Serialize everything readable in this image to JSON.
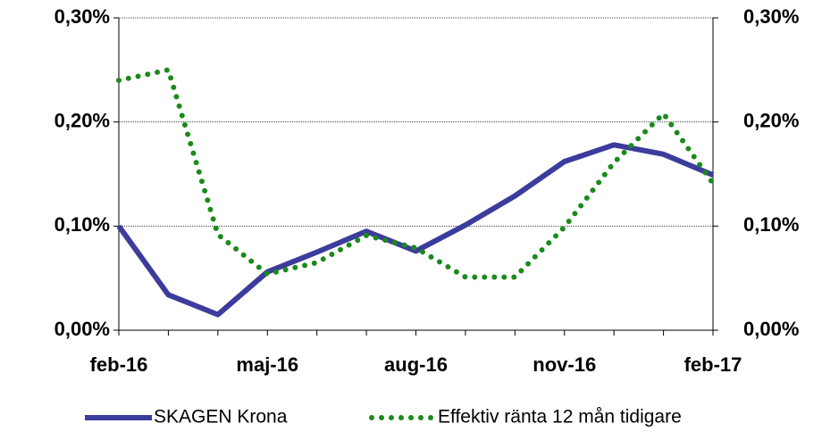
{
  "chart_data": {
    "type": "line",
    "categories": [
      "feb-16",
      null,
      null,
      "maj-16",
      null,
      null,
      "aug-16",
      null,
      null,
      "nov-16",
      null,
      null,
      "feb-17"
    ],
    "series": [
      {
        "name": "SKAGEN Krona",
        "color": "#3c3c9c",
        "style": "solid",
        "values": [
          0.1,
          0.034,
          0.015,
          0.056,
          0.075,
          0.095,
          0.076,
          0.101,
          0.129,
          0.162,
          0.178,
          0.169,
          0.149
        ]
      },
      {
        "name": "Effektiv ränta 12 mån tidigare",
        "color": "#1a8a1a",
        "style": "dotted",
        "axis": "y2",
        "values": [
          0.24,
          0.25,
          0.092,
          0.054,
          0.065,
          0.091,
          0.079,
          0.051,
          0.051,
          0.099,
          0.161,
          0.208,
          0.141
        ]
      }
    ],
    "ylim": [
      0,
      0.3
    ],
    "yticks": [
      {
        "value": 0,
        "label": "0,00%"
      },
      {
        "value": 0.1,
        "label": "0,10%"
      },
      {
        "value": 0.2,
        "label": "0,20%"
      },
      {
        "value": 0.3,
        "label": "0,30%"
      }
    ],
    "y2lim": [
      0,
      0.3
    ],
    "y2ticks": [
      {
        "value": 0,
        "label": "0,00%"
      },
      {
        "value": 0.1,
        "label": "0,10%"
      },
      {
        "value": 0.2,
        "label": "0,20%"
      },
      {
        "value": 0.3,
        "label": "0,30%"
      }
    ],
    "grid": true,
    "legend": "bottom"
  }
}
